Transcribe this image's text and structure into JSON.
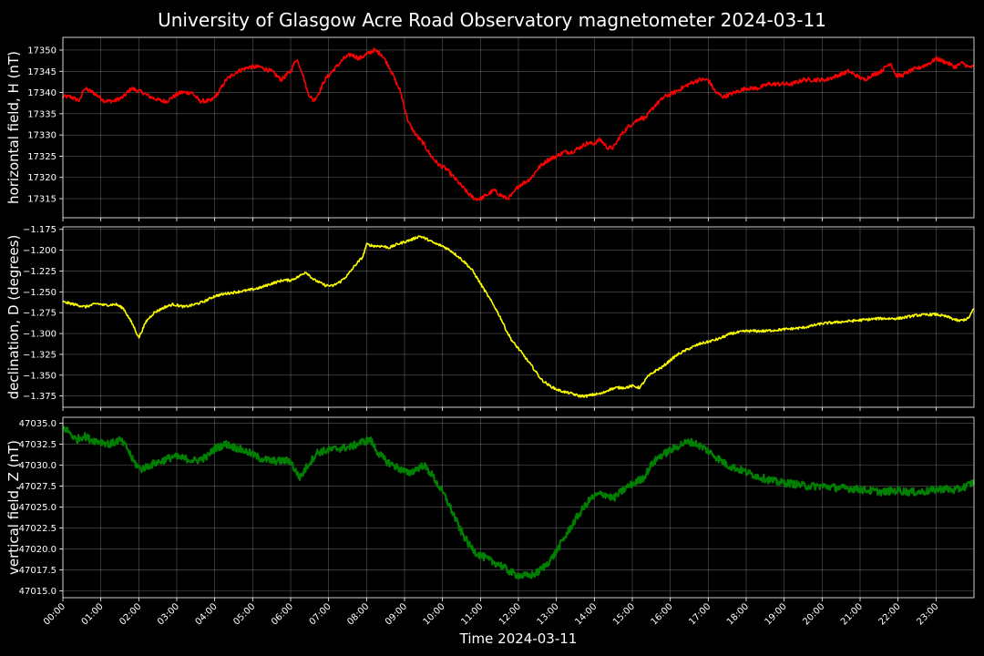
{
  "chart_data": {
    "type": "line",
    "title": "University of Glasgow Acre Road Observatory magnetometer 2024-03-11",
    "xlabel": "Time 2024-03-11",
    "x_tick_labels": [
      "00:00",
      "01:00",
      "02:00",
      "03:00",
      "04:00",
      "05:00",
      "06:00",
      "07:00",
      "08:00",
      "09:00",
      "10:00",
      "11:00",
      "12:00",
      "13:00",
      "14:00",
      "15:00",
      "16:00",
      "17:00",
      "18:00",
      "19:00",
      "20:00",
      "21:00",
      "22:00",
      "23:00"
    ],
    "x_unit": "hour",
    "xlim": [
      0,
      24
    ],
    "grid": true,
    "panels": [
      {
        "ylabel": "horizontal field, H (nT)",
        "color": "#ff0000",
        "ylim": [
          17310.5,
          17353
        ],
        "y_tick_labels": [
          "17315",
          "17320",
          "17325",
          "17330",
          "17335",
          "17340",
          "17345",
          "17350"
        ],
        "y_tick_values": [
          17315,
          17320,
          17325,
          17330,
          17335,
          17340,
          17345,
          17350
        ],
        "noise": 0.5,
        "x": [
          0,
          0.2,
          0.45,
          0.55,
          0.8,
          1.1,
          1.35,
          1.6,
          1.8,
          2.1,
          2.3,
          2.6,
          2.75,
          2.9,
          3.1,
          3.4,
          3.6,
          3.9,
          4.1,
          4.3,
          4.6,
          4.9,
          5.2,
          5.5,
          5.75,
          6.0,
          6.15,
          6.3,
          6.45,
          6.6,
          6.75,
          6.9,
          7.2,
          7.4,
          7.6,
          7.8,
          8.0,
          8.2,
          8.4,
          8.6,
          8.75,
          8.9,
          9.1,
          9.3,
          9.5,
          9.7,
          9.9,
          10.1,
          10.3,
          10.5,
          10.7,
          10.85,
          11.0,
          11.2,
          11.35,
          11.5,
          11.7,
          11.85,
          12.0,
          12.2,
          12.35,
          12.5,
          12.75,
          13.0,
          13.2,
          13.4,
          13.6,
          13.8,
          14.0,
          14.15,
          14.35,
          14.5,
          14.7,
          14.9,
          15.05,
          15.2,
          15.35,
          15.6,
          15.85,
          16.1,
          16.3,
          16.5,
          16.75,
          17.0,
          17.2,
          17.4,
          17.7,
          18.0,
          18.3,
          18.6,
          18.9,
          19.2,
          19.5,
          19.8,
          20.1,
          20.4,
          20.7,
          20.9,
          21.1,
          21.3,
          21.55,
          21.8,
          21.95,
          22.1,
          22.3,
          22.6,
          22.85,
          23.0,
          23.3,
          23.5,
          23.7,
          23.85,
          24.0
        ],
        "y": [
          17339,
          17339,
          17338,
          17341,
          17340,
          17338,
          17338,
          17339,
          17341,
          17340,
          17339,
          17338,
          17338,
          17339,
          17340,
          17340,
          17338,
          17338,
          17340,
          17343,
          17345,
          17346,
          17346,
          17345,
          17343,
          17345,
          17348,
          17345,
          17340,
          17338,
          17340,
          17343,
          17346,
          17348,
          17349,
          17348,
          17349,
          17350,
          17349,
          17346,
          17343,
          17340,
          17333,
          17330,
          17328,
          17325,
          17323,
          17322,
          17320,
          17318,
          17316,
          17315,
          17315,
          17316,
          17317,
          17316,
          17315,
          17316,
          17318,
          17319,
          17320,
          17322,
          17324,
          17325,
          17326,
          17326,
          17327,
          17328,
          17328,
          17329,
          17327,
          17327,
          17330,
          17332,
          17333,
          17334,
          17334,
          17337,
          17339,
          17340,
          17341,
          17342,
          17343,
          17343,
          17340,
          17339,
          17340,
          17341,
          17341,
          17342,
          17342,
          17342,
          17343,
          17343,
          17343,
          17344,
          17345,
          17344,
          17343,
          17344,
          17345,
          17347,
          17344,
          17344,
          17345,
          17346,
          17347,
          17348,
          17347,
          17346,
          17347,
          17346,
          17346
        ]
      },
      {
        "ylabel": "declination, D (degrees)",
        "color": "#ffff00",
        "ylim": [
          -1.3885,
          -1.172
        ],
        "y_tick_labels": [
          "−1.375",
          "−1.350",
          "−1.325",
          "−1.300",
          "−1.275",
          "−1.250",
          "−1.225",
          "−1.200",
          "−1.175"
        ],
        "y_tick_values": [
          -1.375,
          -1.35,
          -1.325,
          -1.3,
          -1.275,
          -1.25,
          -1.225,
          -1.2,
          -1.175
        ],
        "noise": 0.0015,
        "x": [
          0,
          0.3,
          0.6,
          0.9,
          1.1,
          1.4,
          1.6,
          1.85,
          2.0,
          2.2,
          2.4,
          2.7,
          2.9,
          3.2,
          3.4,
          3.7,
          4.0,
          4.3,
          4.6,
          4.9,
          5.2,
          5.5,
          5.8,
          6.0,
          6.2,
          6.4,
          6.6,
          6.9,
          7.1,
          7.3,
          7.5,
          7.7,
          7.9,
          8.0,
          8.2,
          8.4,
          8.6,
          8.8,
          9.0,
          9.2,
          9.4,
          9.6,
          9.8,
          10.0,
          10.2,
          10.4,
          10.6,
          10.8,
          11.0,
          11.2,
          11.4,
          11.55,
          11.7,
          11.85,
          12.0,
          12.2,
          12.4,
          12.6,
          12.8,
          13.0,
          13.2,
          13.4,
          13.6,
          13.8,
          14.0,
          14.2,
          14.4,
          14.6,
          14.8,
          15.0,
          15.2,
          15.4,
          15.6,
          15.8,
          16.0,
          16.2,
          16.5,
          16.8,
          17.0,
          17.3,
          17.6,
          18.0,
          18.5,
          19.0,
          19.5,
          20.0,
          20.5,
          21.0,
          21.5,
          22.0,
          22.5,
          23.0,
          23.3,
          23.6,
          23.85,
          24.0
        ],
        "y": [
          -1.262,
          -1.265,
          -1.268,
          -1.264,
          -1.266,
          -1.265,
          -1.27,
          -1.29,
          -1.305,
          -1.285,
          -1.275,
          -1.268,
          -1.265,
          -1.268,
          -1.266,
          -1.262,
          -1.255,
          -1.252,
          -1.25,
          -1.248,
          -1.245,
          -1.24,
          -1.236,
          -1.236,
          -1.232,
          -1.226,
          -1.235,
          -1.242,
          -1.243,
          -1.238,
          -1.23,
          -1.218,
          -1.208,
          -1.193,
          -1.195,
          -1.195,
          -1.197,
          -1.193,
          -1.19,
          -1.187,
          -1.183,
          -1.187,
          -1.192,
          -1.195,
          -1.2,
          -1.207,
          -1.215,
          -1.225,
          -1.24,
          -1.255,
          -1.27,
          -1.283,
          -1.298,
          -1.31,
          -1.318,
          -1.33,
          -1.342,
          -1.355,
          -1.362,
          -1.367,
          -1.37,
          -1.372,
          -1.375,
          -1.375,
          -1.373,
          -1.372,
          -1.367,
          -1.365,
          -1.365,
          -1.363,
          -1.365,
          -1.352,
          -1.345,
          -1.34,
          -1.332,
          -1.325,
          -1.318,
          -1.312,
          -1.31,
          -1.306,
          -1.3,
          -1.297,
          -1.297,
          -1.295,
          -1.293,
          -1.288,
          -1.286,
          -1.284,
          -1.282,
          -1.282,
          -1.278,
          -1.277,
          -1.28,
          -1.285,
          -1.282,
          -1.27
        ]
      },
      {
        "ylabel": "vertical field, Z (nT)",
        "color": "#008000",
        "ylim": [
          47014.2,
          47035.7
        ],
        "y_tick_labels": [
          "47015.0",
          "47017.5",
          "47020.0",
          "47022.5",
          "47025.0",
          "47027.5",
          "47030.0",
          "47032.5",
          "47035.0"
        ],
        "y_tick_values": [
          47015,
          47017.5,
          47020,
          47022.5,
          47025,
          47027.5,
          47030,
          47032.5,
          47035
        ],
        "noise": 0.45,
        "x": [
          0,
          0.15,
          0.35,
          0.55,
          0.75,
          1.0,
          1.25,
          1.5,
          1.7,
          1.85,
          2.05,
          2.3,
          2.6,
          2.9,
          3.2,
          3.5,
          3.8,
          4.0,
          4.3,
          4.6,
          4.9,
          5.2,
          5.5,
          5.8,
          6.0,
          6.1,
          6.25,
          6.45,
          6.7,
          7.0,
          7.3,
          7.6,
          7.9,
          8.1,
          8.3,
          8.5,
          8.7,
          8.9,
          9.1,
          9.3,
          9.5,
          9.7,
          9.9,
          10.1,
          10.3,
          10.5,
          10.7,
          10.9,
          11.1,
          11.3,
          11.5,
          11.7,
          11.9,
          12.1,
          12.3,
          12.5,
          12.7,
          12.9,
          13.1,
          13.3,
          13.5,
          13.7,
          13.9,
          14.1,
          14.3,
          14.5,
          14.7,
          14.9,
          15.1,
          15.3,
          15.5,
          15.7,
          15.9,
          16.1,
          16.3,
          16.5,
          16.7,
          16.9,
          17.2,
          17.5,
          17.8,
          18.1,
          18.4,
          18.8,
          19.2,
          19.6,
          20.0,
          20.4,
          20.8,
          21.2,
          21.6,
          22.0,
          22.3,
          22.6,
          22.9,
          23.2,
          23.5,
          23.8,
          24.0
        ],
        "y": [
          47034.5,
          47034.0,
          47033.0,
          47033.5,
          47033.0,
          47032.8,
          47032.5,
          47033.0,
          47032.0,
          47030.5,
          47029.5,
          47030.0,
          47030.5,
          47031.0,
          47030.8,
          47030.5,
          47031.0,
          47032.0,
          47032.5,
          47032.0,
          47031.5,
          47030.8,
          47030.5,
          47030.5,
          47030.5,
          47029.5,
          47028.5,
          47030.0,
          47031.5,
          47031.8,
          47032.0,
          47032.2,
          47032.8,
          47033.0,
          47031.5,
          47030.5,
          47030.0,
          47029.5,
          47029.0,
          47029.5,
          47030.0,
          47029.0,
          47027.5,
          47026.0,
          47024.0,
          47022.0,
          47020.5,
          47019.5,
          47019.0,
          47018.5,
          47018.2,
          47017.5,
          47017.0,
          47016.8,
          47016.8,
          47017.2,
          47018.0,
          47019.0,
          47020.5,
          47022.0,
          47023.5,
          47024.8,
          47026.0,
          47026.5,
          47026.5,
          47026.0,
          47026.8,
          47027.5,
          47028.0,
          47028.5,
          47030.0,
          47031.0,
          47031.5,
          47032.0,
          47032.5,
          47032.8,
          47032.5,
          47032.0,
          47031.0,
          47030.0,
          47029.5,
          47029.0,
          47028.5,
          47028.0,
          47027.8,
          47027.5,
          47027.5,
          47027.3,
          47027.2,
          47027.0,
          47026.8,
          47027.0,
          47026.8,
          47026.8,
          47027.0,
          47027.2,
          47027.0,
          47027.5,
          47028.0
        ]
      }
    ]
  }
}
